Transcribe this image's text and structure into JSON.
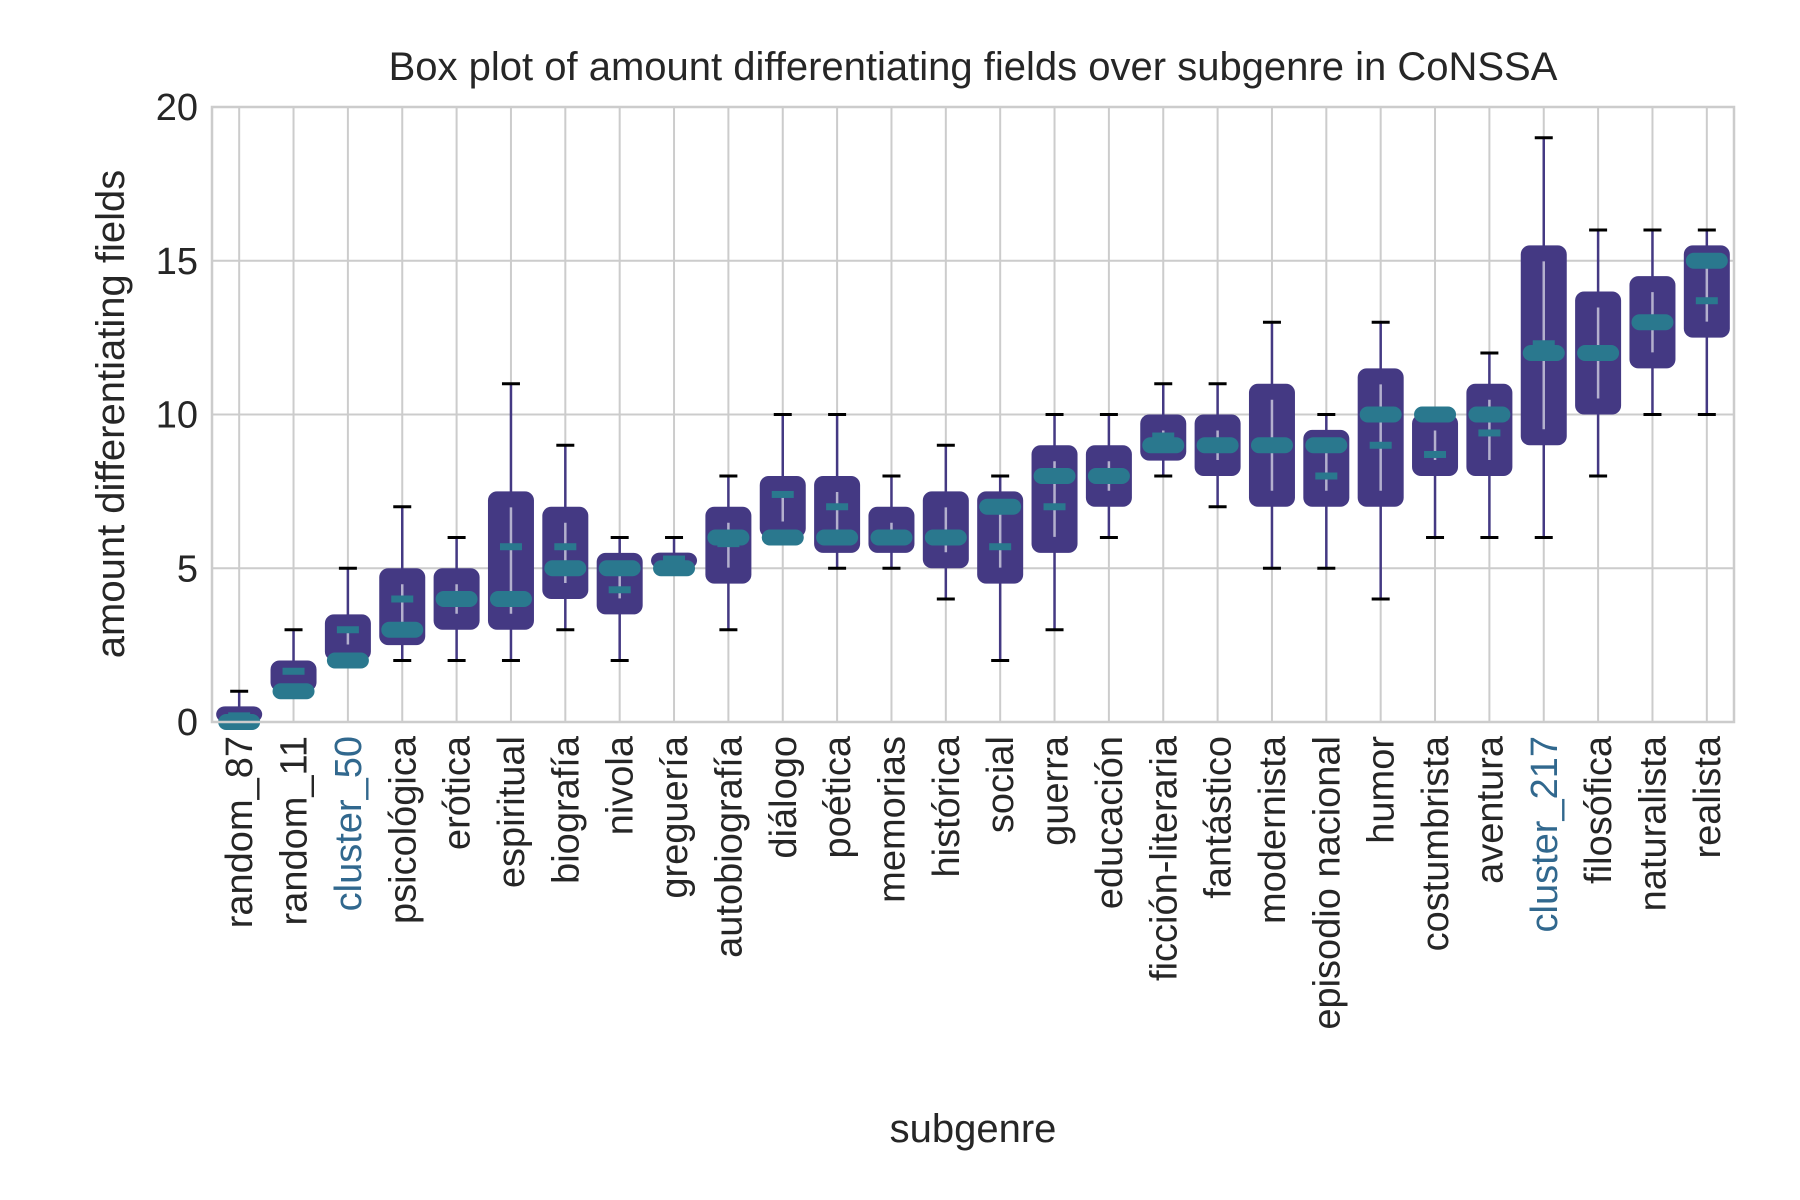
{
  "chart_data": {
    "type": "box",
    "title": "Box plot of amount differentiating fields over subgenre in CoNSSA",
    "xlabel": "subgenre",
    "ylabel": "amount differentiating fields",
    "ylim": [
      0,
      20
    ],
    "yticks": [
      0,
      5,
      10,
      15,
      20
    ],
    "grid": true,
    "colors": {
      "box": "#443983",
      "median": "#2a788e",
      "whisker": "#443983",
      "cap": "#000000",
      "highlight_label": "#31688e",
      "text": "#262626",
      "grid": "#cccccc"
    },
    "highlighted_categories": [
      "cluster_50",
      "cluster_217"
    ],
    "categories": [
      "random_87",
      "random_11",
      "cluster_50",
      "psicológica",
      "erótica",
      "espiritual",
      "biografía",
      "nivola",
      "greguería",
      "autobiografía",
      "diálogo",
      "poética",
      "memorias",
      "histórica",
      "social",
      "guerra",
      "educación",
      "ficción-literaria",
      "fantástico",
      "modernista",
      "episodio nacional",
      "humor",
      "costumbrista",
      "aventura",
      "cluster_217",
      "filosófica",
      "naturalista",
      "realista"
    ],
    "boxes": [
      {
        "min": 0,
        "q1": 0,
        "median": 0,
        "mean": 0.2,
        "q3": 0.5,
        "max": 1
      },
      {
        "min": 1,
        "q1": 1,
        "median": 1,
        "mean": 1.65,
        "q3": 2,
        "max": 3
      },
      {
        "min": 2,
        "q1": 2,
        "median": 2,
        "mean": 3.0,
        "q3": 3.5,
        "max": 5
      },
      {
        "min": 2,
        "q1": 2.5,
        "median": 3,
        "mean": 4.0,
        "q3": 5,
        "max": 7
      },
      {
        "min": 2,
        "q1": 3,
        "median": 4,
        "mean": 4.0,
        "q3": 5,
        "max": 6
      },
      {
        "min": 2,
        "q1": 3,
        "median": 4,
        "mean": 5.7,
        "q3": 7.5,
        "max": 11
      },
      {
        "min": 3,
        "q1": 4,
        "median": 5,
        "mean": 5.7,
        "q3": 7,
        "max": 9
      },
      {
        "min": 2,
        "q1": 3.5,
        "median": 5,
        "mean": 4.3,
        "q3": 5.5,
        "max": 6
      },
      {
        "min": 5,
        "q1": 5,
        "median": 5,
        "mean": 5.3,
        "q3": 5.5,
        "max": 6
      },
      {
        "min": 3,
        "q1": 4.5,
        "median": 6,
        "mean": 5.8,
        "q3": 7,
        "max": 8
      },
      {
        "min": 6,
        "q1": 6,
        "median": 6,
        "mean": 7.4,
        "q3": 8,
        "max": 10
      },
      {
        "min": 5,
        "q1": 5.5,
        "median": 6,
        "mean": 7.0,
        "q3": 8,
        "max": 10
      },
      {
        "min": 5,
        "q1": 5.5,
        "median": 6,
        "mean": 6.0,
        "q3": 7,
        "max": 8
      },
      {
        "min": 4,
        "q1": 5,
        "median": 6,
        "mean": 6.0,
        "q3": 7.5,
        "max": 9
      },
      {
        "min": 2,
        "q1": 4.5,
        "median": 7,
        "mean": 5.7,
        "q3": 7.5,
        "max": 8
      },
      {
        "min": 3,
        "q1": 5.5,
        "median": 8,
        "mean": 7.0,
        "q3": 9,
        "max": 10
      },
      {
        "min": 6,
        "q1": 7,
        "median": 8,
        "mean": 8.0,
        "q3": 9,
        "max": 10
      },
      {
        "min": 8,
        "q1": 8.5,
        "median": 9,
        "mean": 9.3,
        "q3": 10,
        "max": 11
      },
      {
        "min": 7,
        "q1": 8,
        "median": 9,
        "mean": 9.0,
        "q3": 10,
        "max": 11
      },
      {
        "min": 5,
        "q1": 7,
        "median": 9,
        "mean": 9.0,
        "q3": 11,
        "max": 13
      },
      {
        "min": 5,
        "q1": 7,
        "median": 9,
        "mean": 8.0,
        "q3": 9.5,
        "max": 10
      },
      {
        "min": 4,
        "q1": 7,
        "median": 10,
        "mean": 9.0,
        "q3": 11.5,
        "max": 13
      },
      {
        "min": 6,
        "q1": 8,
        "median": 10,
        "mean": 8.7,
        "q3": 10,
        "max": 10
      },
      {
        "min": 6,
        "q1": 8,
        "median": 10,
        "mean": 9.4,
        "q3": 11,
        "max": 12
      },
      {
        "min": 6,
        "q1": 9,
        "median": 12,
        "mean": 12.3,
        "q3": 15.5,
        "max": 19
      },
      {
        "min": 8,
        "q1": 10,
        "median": 12,
        "mean": 12.0,
        "q3": 14,
        "max": 16
      },
      {
        "min": 10,
        "q1": 11.5,
        "median": 13,
        "mean": 13.0,
        "q3": 14.5,
        "max": 16
      },
      {
        "min": 10,
        "q1": 12.5,
        "median": 15,
        "mean": 13.7,
        "q3": 15.5,
        "max": 16
      }
    ]
  }
}
